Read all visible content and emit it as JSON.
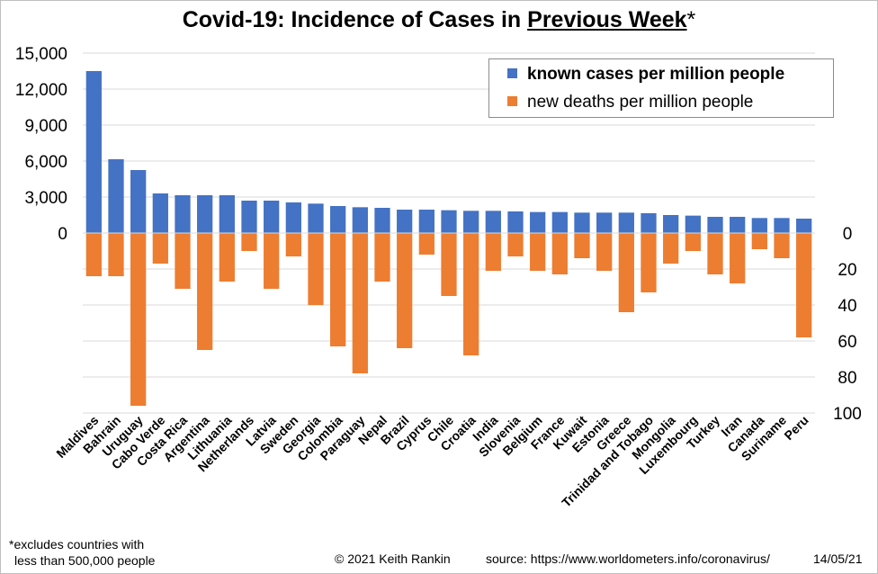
{
  "title_prefix": "Covid-19: Incidence of Cases in ",
  "title_emph": "Previous Week",
  "title_suffix": "*",
  "legend": {
    "cases": "known cases per million people",
    "deaths": "new deaths per million people"
  },
  "footnote_line1": "*excludes  countries with",
  "footnote_line2": "less than 500,000 people",
  "copyright": "© 2021  Keith Rankin",
  "source": "source:  https://www.worldometers.info/coronavirus/",
  "date": "14/05/21",
  "chart_data": {
    "type": "bar",
    "colors": {
      "cases": "#4472c4",
      "deaths": "#ed7d31"
    },
    "categories": [
      "Maldives",
      "Bahrain",
      "Uruguay",
      "Cabo Verde",
      "Costa Rica",
      "Argentina",
      "Lithuania",
      "Netherlands",
      "Latvia",
      "Sweden",
      "Georgia",
      "Colombia",
      "Paraguay",
      "Nepal",
      "Brazil",
      "Cyprus",
      "Chile",
      "Croatia",
      "India",
      "Slovenia",
      "Belgium",
      "France",
      "Kuwait",
      "Estonia",
      "Greece",
      "Trinidad and Tobago",
      "Mongolia",
      "Luxembourg",
      "Turkey",
      "Iran",
      "Canada",
      "Suriname",
      "Peru"
    ],
    "series": [
      {
        "name": "known cases per million people",
        "axis": "left",
        "values": [
          13500,
          6150,
          5250,
          3300,
          3150,
          3150,
          3150,
          2700,
          2700,
          2550,
          2450,
          2250,
          2150,
          2100,
          1950,
          1950,
          1900,
          1850,
          1850,
          1800,
          1750,
          1750,
          1700,
          1700,
          1700,
          1650,
          1500,
          1450,
          1350,
          1350,
          1250,
          1250,
          1200
        ]
      },
      {
        "name": "new deaths per million people",
        "axis": "right",
        "values": [
          24,
          24,
          96,
          17,
          31,
          65,
          27,
          10,
          31,
          13,
          40,
          63,
          78,
          27,
          64,
          12,
          35,
          68,
          21,
          13,
          21,
          23,
          14,
          21,
          44,
          33,
          17,
          10,
          23,
          28,
          9,
          14,
          58
        ]
      }
    ],
    "left_axis": {
      "min": -15000,
      "max": 15000,
      "ticks": [
        0,
        3000,
        6000,
        9000,
        12000,
        15000
      ],
      "tick_labels": [
        "0",
        "3,000",
        "6,000",
        "9,000",
        "12,000",
        "15,000"
      ]
    },
    "right_axis": {
      "ticks": [
        0,
        20,
        40,
        60,
        80,
        100
      ],
      "tick_labels": [
        "0",
        "20",
        "40",
        "60",
        "80",
        "100"
      ],
      "inverted": true
    },
    "grid": true,
    "legend_position": "top-right"
  }
}
